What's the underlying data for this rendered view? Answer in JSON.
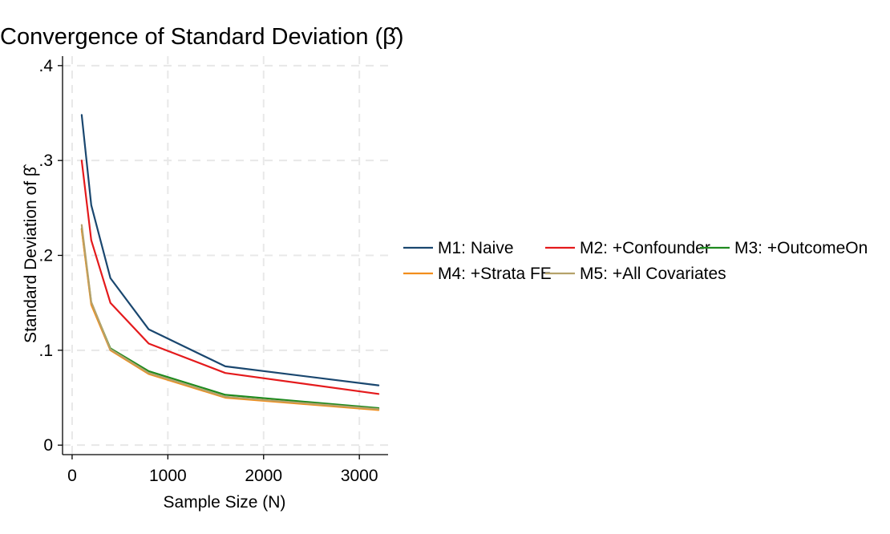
{
  "chart_data": {
    "type": "line",
    "title": "Convergence of Standard Deviation (β̂)",
    "xlabel": "Sample Size (N)",
    "ylabel": "Standard Deviation of β̂",
    "x": [
      100,
      200,
      400,
      800,
      1600,
      3200
    ],
    "xlim": [
      -100,
      3300
    ],
    "ylim": [
      -0.01,
      0.41
    ],
    "xticks": [
      0,
      1000,
      2000,
      3000
    ],
    "xtick_labels": [
      "0",
      "1000",
      "2000",
      "3000"
    ],
    "yticks": [
      0,
      0.1,
      0.2,
      0.3,
      0.4
    ],
    "ytick_labels": [
      "0",
      ".1",
      ".2",
      ".3",
      ".4"
    ],
    "grid": true,
    "legend_position": "right",
    "series": [
      {
        "name": "M1: Naive",
        "color": "#1a476f",
        "values": [
          0.348,
          0.253,
          0.176,
          0.122,
          0.083,
          0.063
        ]
      },
      {
        "name": "M2: +Confounder",
        "color": "#e41a1c",
        "values": [
          0.3,
          0.216,
          0.15,
          0.107,
          0.076,
          0.054
        ]
      },
      {
        "name": "M3: +OutcomeOn",
        "color": "#1f8a1f",
        "values": [
          0.228,
          0.15,
          0.102,
          0.078,
          0.053,
          0.039
        ]
      },
      {
        "name": "M4: +Strata FE",
        "color": "#f28e1c",
        "values": [
          0.227,
          0.148,
          0.1,
          0.075,
          0.05,
          0.037
        ]
      },
      {
        "name": "M5: +All Covariates",
        "color": "#b5a26a",
        "values": [
          0.232,
          0.151,
          0.101,
          0.076,
          0.051,
          0.038
        ]
      }
    ]
  }
}
